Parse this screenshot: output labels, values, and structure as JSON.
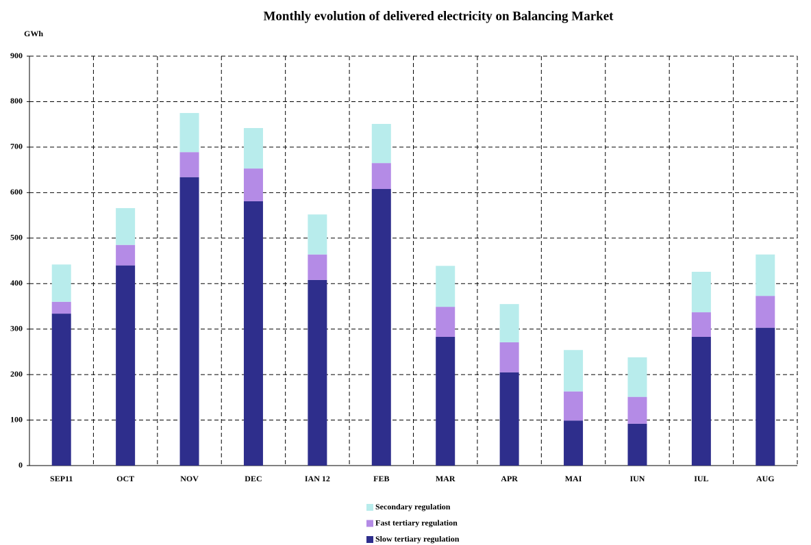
{
  "chart_data": {
    "type": "bar",
    "stacked": true,
    "title": "Monthly evolution of delivered electricity on Balancing Market",
    "y_label": "GWh",
    "categories": [
      "SEP11",
      "OCT",
      "NOV",
      "DEC",
      "IAN 12",
      "FEB",
      "MAR",
      "APR",
      "MAI",
      "IUN",
      "IUL",
      "AUG"
    ],
    "series": [
      {
        "name": "Slow tertiary regulation",
        "color": "#2e2e8c",
        "values": [
          334,
          440,
          634,
          581,
          408,
          608,
          283,
          205,
          99,
          92,
          283,
          303
        ]
      },
      {
        "name": "Fast tertiary regulation",
        "color": "#b48be6",
        "values": [
          26,
          45,
          55,
          72,
          56,
          57,
          66,
          66,
          64,
          59,
          54,
          70
        ]
      },
      {
        "name": "Secondary regulation",
        "color": "#b8ecec",
        "values": [
          82,
          81,
          86,
          89,
          88,
          86,
          90,
          84,
          91,
          87,
          89,
          91
        ]
      }
    ],
    "ylim": [
      0,
      900
    ],
    "yticks": [
      0,
      100,
      200,
      300,
      400,
      500,
      600,
      700,
      800,
      900
    ],
    "grid": true,
    "legend": "bottom"
  }
}
